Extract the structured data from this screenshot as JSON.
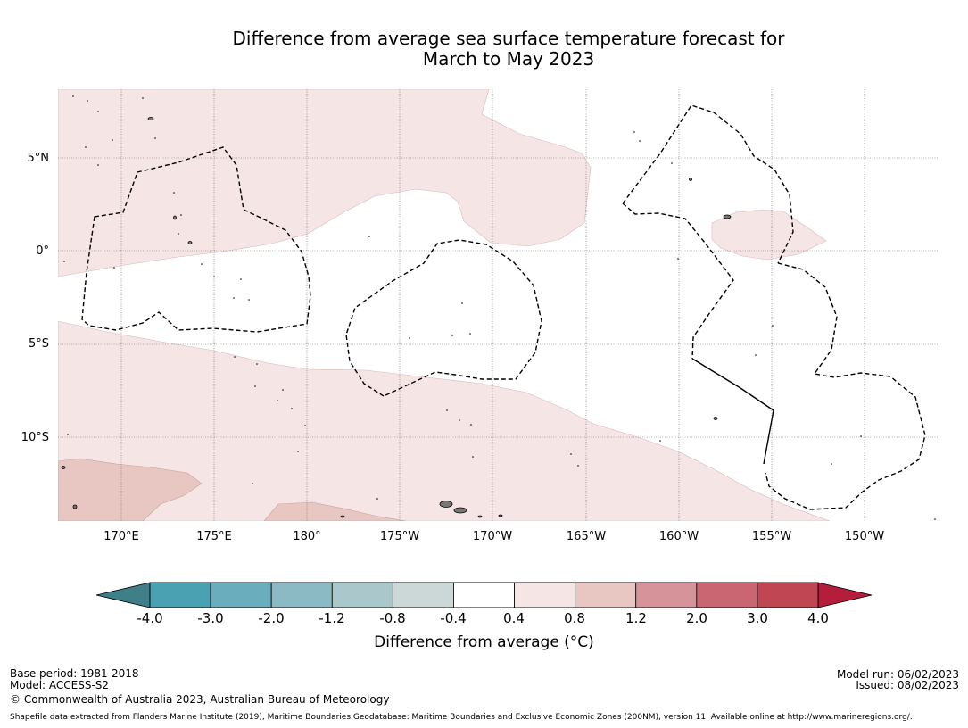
{
  "title": {
    "line1": "Difference from average sea surface temperature forecast for",
    "line2": "March to May 2023"
  },
  "map": {
    "latitude_labels": [
      "5°N",
      "0°",
      "5°S",
      "10°S"
    ],
    "longitude_labels": [
      "170°E",
      "175°E",
      "180°",
      "175°W",
      "170°W",
      "165°W",
      "160°W",
      "155°W",
      "150°W"
    ],
    "colors": {
      "warm_0_4_to_0_8": "#f5e6e5",
      "warm_0_8_to_1_2": "#e8c6c2",
      "neutral": "#ffffff",
      "land": "#777777",
      "boundary": "#000000",
      "grid": "#555555"
    }
  },
  "colorbar": {
    "ticks": [
      "-4.0",
      "-3.0",
      "-2.0",
      "-1.2",
      "-0.8",
      "-0.4",
      "0.4",
      "0.8",
      "1.2",
      "2.0",
      "3.0",
      "4.0"
    ],
    "colors": [
      "#3f7f88",
      "#4aa1b2",
      "#6aaebd",
      "#8bb9c4",
      "#aac8cc",
      "#ccd7d7",
      "#ffffff",
      "#f5e6e5",
      "#e8c6c2",
      "#d7939a",
      "#c96671",
      "#c04654",
      "#b51d3c"
    ],
    "label": "Difference from average (°C)"
  },
  "footer": {
    "base_period": "Base period: 1981-2018",
    "model": "Model: ACCESS-S2",
    "copyright": "© Commonwealth of Australia 2023, Australian Bureau of Meteorology",
    "model_run": "Model run: 06/02/2023",
    "issued": "Issued: 08/02/2023",
    "source": "Shapefile data extracted from Flanders Marine Institute (2019), Maritime Boundaries Geodatabase: Maritime Boundaries and Exclusive Economic Zones (200NM), version 11. Available online at http://www.marineregions.org/."
  }
}
